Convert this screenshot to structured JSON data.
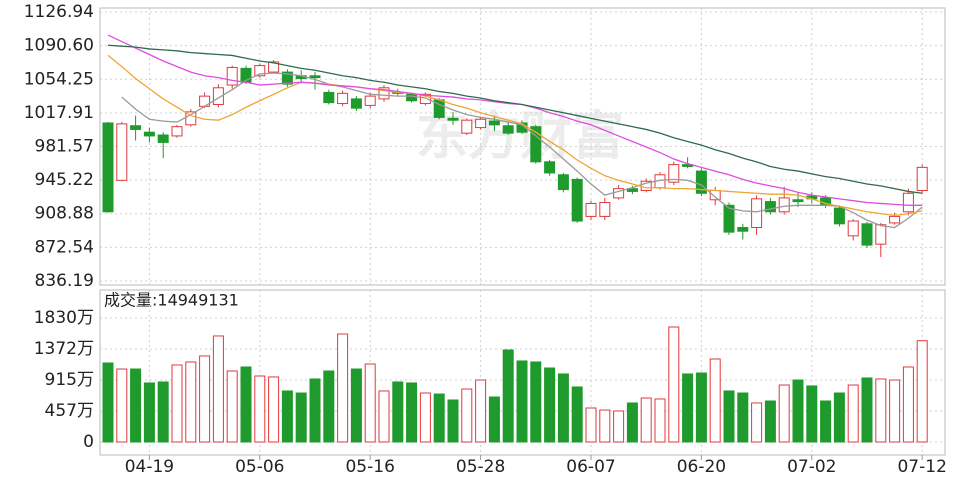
{
  "chart_data": [
    {
      "type": "candlestick",
      "watermark": "东方财富",
      "categories": [
        null,
        null,
        null,
        "04-19",
        null,
        null,
        null,
        null,
        null,
        null,
        null,
        "05-06",
        null,
        null,
        null,
        null,
        null,
        null,
        null,
        "05-16",
        null,
        null,
        null,
        null,
        null,
        null,
        null,
        "05-28",
        null,
        null,
        null,
        null,
        null,
        null,
        null,
        "06-07",
        null,
        null,
        null,
        null,
        null,
        null,
        null,
        "06-20",
        null,
        null,
        null,
        null,
        null,
        null,
        null,
        "07-02",
        null,
        null,
        null,
        null,
        null,
        null,
        null,
        "07-12"
      ],
      "open": [
        1007,
        945,
        1004,
        997,
        994,
        993,
        1005,
        1025,
        1027,
        1048,
        1066,
        1058,
        1062,
        1062,
        1058,
        1058,
        1040,
        1028,
        1033,
        1026,
        1033,
        1040,
        1038,
        1028,
        1032,
        1012,
        996,
        1002,
        1009,
        1004,
        1007,
        1003,
        965,
        951,
        946,
        906,
        906,
        926,
        936,
        934,
        937,
        943,
        962,
        955,
        924,
        918,
        894,
        894,
        922,
        911,
        924,
        928,
        926,
        915,
        885,
        898,
        876,
        899,
        911,
        934
      ],
      "high": [
        1008,
        1008,
        1015,
        1002,
        997,
        1005,
        1022,
        1040,
        1049,
        1069,
        1069,
        1071,
        1075,
        1065,
        1064,
        1062,
        1043,
        1042,
        1036,
        1040,
        1048,
        1044,
        1040,
        1040,
        1034,
        1019,
        1012,
        1014,
        1015,
        1008,
        1010,
        1005,
        967,
        953,
        948,
        923,
        926,
        940,
        939,
        947,
        954,
        965,
        970,
        958,
        938,
        921,
        898,
        929,
        926,
        938,
        932,
        932,
        929,
        918,
        903,
        900,
        899,
        910,
        936,
        962
      ],
      "low": [
        910,
        944,
        988,
        986,
        969,
        991,
        1003,
        1023,
        1024,
        1044,
        1049,
        1056,
        1061,
        1046,
        1050,
        1043,
        1027,
        1025,
        1020,
        1023,
        1030,
        1036,
        1029,
        1026,
        1011,
        1005,
        994,
        1000,
        998,
        994,
        995,
        963,
        950,
        932,
        899,
        902,
        902,
        924,
        930,
        932,
        935,
        940,
        958,
        928,
        918,
        886,
        881,
        886,
        908,
        908,
        916,
        920,
        915,
        895,
        880,
        872,
        862,
        897,
        907,
        931
      ],
      "close": [
        911,
        1006,
        1000,
        993,
        986,
        1003,
        1019,
        1036,
        1045,
        1067,
        1051,
        1069,
        1073,
        1049,
        1055,
        1056,
        1029,
        1039,
        1023,
        1036,
        1045,
        1039,
        1031,
        1038,
        1013,
        1010,
        1010,
        1011,
        1005,
        996,
        997,
        965,
        953,
        935,
        901,
        920,
        921,
        936,
        933,
        944,
        951,
        962,
        960,
        931,
        934,
        889,
        890,
        925,
        911,
        926,
        922,
        925,
        918,
        898,
        901,
        875,
        897,
        906,
        931,
        959
      ],
      "up_color": "#e2393c",
      "down_color": "#1f9a2c",
      "series": [
        {
          "color": "#9a9a9a",
          "values": [
            null,
            1035,
            1022,
            1011,
            1009,
            1008,
            1016,
            1025,
            1034,
            1043,
            1053,
            1060,
            1061,
            1060,
            1058,
            1054,
            1049,
            1046,
            1042,
            1038,
            1037,
            1036,
            1036,
            1034,
            1027,
            1021,
            1016,
            1013,
            1011,
            1008,
            1005,
            993,
            981,
            968,
            955,
            941,
            929,
            933,
            937,
            942,
            945,
            946,
            945,
            940,
            927,
            915,
            912,
            911,
            914,
            917,
            918,
            918,
            918,
            917,
            910,
            902,
            896,
            894,
            904,
            916
          ]
        },
        {
          "color": "#f0a532",
          "values": [
            1080,
            1068,
            1055,
            1044,
            1033,
            1024,
            1015,
            1011,
            1010,
            1016,
            1024,
            1031,
            1038,
            1045,
            1051,
            1050,
            1049,
            1047,
            1046,
            1044,
            1042,
            1040,
            1039,
            1036,
            1032,
            1027,
            1023,
            1018,
            1014,
            1010,
            1006,
            997,
            987,
            978,
            967,
            958,
            950,
            945,
            941,
            937,
            937,
            936,
            936,
            935,
            934,
            933,
            932,
            931,
            930,
            930,
            929,
            925,
            920,
            917,
            914,
            911,
            909,
            907,
            909,
            912
          ]
        },
        {
          "color": "#e04ce0",
          "values": [
            1102,
            1095,
            1088,
            1081,
            1074,
            1068,
            1062,
            1058,
            1056,
            1053,
            1051,
            1048,
            1049,
            1050,
            1051,
            1050,
            1048,
            1047,
            1046,
            1044,
            1043,
            1041,
            1039,
            1037,
            1036,
            1035,
            1033,
            1032,
            1030,
            1028,
            1027,
            1023,
            1018,
            1014,
            1009,
            1005,
            999,
            993,
            987,
            981,
            975,
            968,
            963,
            959,
            955,
            951,
            946,
            942,
            939,
            936,
            932,
            929,
            927,
            925,
            923,
            921,
            920,
            919,
            918,
            918
          ]
        },
        {
          "color": "#2f6b4c",
          "values": [
            1091,
            1090,
            1089,
            1087,
            1086,
            1085,
            1083,
            1082,
            1081,
            1080,
            1077,
            1074,
            1072,
            1069,
            1066,
            1064,
            1061,
            1058,
            1056,
            1053,
            1051,
            1048,
            1046,
            1044,
            1041,
            1039,
            1036,
            1034,
            1031,
            1029,
            1027,
            1024,
            1021,
            1018,
            1015,
            1012,
            1009,
            1006,
            1003,
            1000,
            996,
            991,
            987,
            983,
            978,
            974,
            969,
            965,
            960,
            957,
            955,
            952,
            949,
            947,
            944,
            941,
            939,
            936,
            933,
            931
          ]
        }
      ],
      "ylim": [
        836.19,
        1126.94
      ],
      "yticks": [
        836.19,
        872.54,
        908.88,
        945.22,
        981.57,
        1017.91,
        1054.25,
        {
          "value": 1090.6,
          "label": "1090.60"
        },
        1126.94
      ],
      "grid": true
    },
    {
      "type": "bar",
      "title": "成交量:14949131",
      "values": [
        1166,
        1077,
        1077,
        871,
        886,
        1137,
        1181,
        1270,
        1565,
        1048,
        1107,
        974,
        960,
        753,
        723,
        930,
        1048,
        1594,
        1077,
        1151,
        753,
        886,
        871,
        723,
        708,
        620,
        782,
        915,
        664,
        1358,
        1196,
        1181,
        1092,
        1004,
        812,
        502,
        472,
        458,
        576,
        649,
        635,
        1697,
        1004,
        1018,
        1225,
        753,
        723,
        576,
        605,
        841,
        915,
        827,
        605,
        723,
        841,
        945,
        930,
        915,
        1107,
        1494.9131
      ],
      "up_color": "#e2393c",
      "down_color": "#1f9a2c",
      "ylim": [
        0,
        1830
      ],
      "yticks": [
        0,
        {
          "value": 457,
          "label": "457万"
        },
        {
          "value": 915,
          "label": "915万"
        },
        {
          "value": 1372,
          "label": "1372万"
        },
        {
          "value": 1830,
          "label": "1830万"
        }
      ],
      "grid": true
    }
  ]
}
